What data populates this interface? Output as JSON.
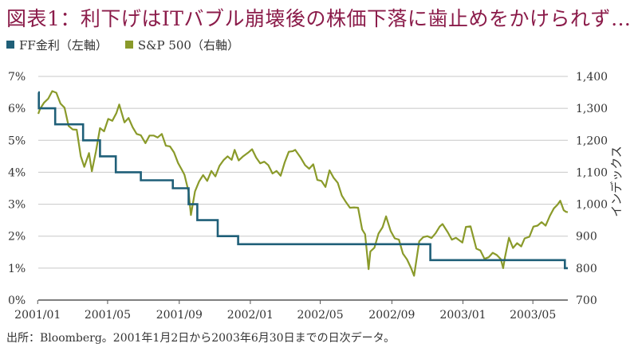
{
  "title": "図表1：利下げはITバブル崩壊後の株価下落に歯止めをかけられず…",
  "legend": {
    "ff": {
      "label": "FF金利（左軸）",
      "color": "#1f5f78"
    },
    "sp": {
      "label": "S&P 500（右軸）",
      "color": "#8a9a2a"
    }
  },
  "source": "出所：Bloomberg。2001年1月2日から2003年6月30日までの日次データ。",
  "chart_data": {
    "type": "line",
    "x_ticks": [
      "2001/01",
      "2001/05",
      "2001/09",
      "2002/01",
      "2002/05",
      "2002/09",
      "2003/01",
      "2003/05"
    ],
    "left_axis": {
      "ticks": [
        "0%",
        "1%",
        "2%",
        "3%",
        "4%",
        "5%",
        "6%",
        "7%"
      ],
      "range": [
        0,
        7
      ]
    },
    "right_axis": {
      "label": "インデックス",
      "ticks": [
        "700",
        "800",
        "900",
        "1,000",
        "1,100",
        "1,200",
        "1,300",
        "1,400"
      ],
      "range": [
        700,
        1400
      ]
    },
    "grid": "horizontal",
    "series": [
      {
        "name": "FF金利（左軸）",
        "axis": "left",
        "color": "#1f5f78",
        "step": true,
        "points": [
          [
            "2001-01-02",
            6.5
          ],
          [
            "2001-01-03",
            6.0
          ],
          [
            "2001-01-31",
            5.5
          ],
          [
            "2001-03-20",
            5.0
          ],
          [
            "2001-04-18",
            4.5
          ],
          [
            "2001-05-15",
            4.0
          ],
          [
            "2001-06-27",
            3.75
          ],
          [
            "2001-08-21",
            3.5
          ],
          [
            "2001-09-17",
            3.0
          ],
          [
            "2001-10-02",
            2.5
          ],
          [
            "2001-11-06",
            2.0
          ],
          [
            "2001-12-11",
            1.75
          ],
          [
            "2002-11-06",
            1.25
          ],
          [
            "2003-06-25",
            1.0
          ],
          [
            "2003-06-30",
            1.0
          ]
        ]
      },
      {
        "name": "S&P 500（右軸）",
        "axis": "right",
        "color": "#8a9a2a",
        "points": [
          [
            "2001-01-02",
            1283
          ],
          [
            "2001-01-05",
            1298
          ],
          [
            "2001-01-12",
            1318
          ],
          [
            "2001-01-19",
            1330
          ],
          [
            "2001-01-26",
            1354
          ],
          [
            "2001-02-02",
            1349
          ],
          [
            "2001-02-09",
            1315
          ],
          [
            "2001-02-16",
            1302
          ],
          [
            "2001-02-23",
            1245
          ],
          [
            "2001-03-02",
            1234
          ],
          [
            "2001-03-09",
            1233
          ],
          [
            "2001-03-16",
            1150
          ],
          [
            "2001-03-22",
            1117
          ],
          [
            "2001-03-30",
            1160
          ],
          [
            "2001-04-04",
            1103
          ],
          [
            "2001-04-11",
            1165
          ],
          [
            "2001-04-18",
            1238
          ],
          [
            "2001-04-25",
            1228
          ],
          [
            "2001-05-02",
            1267
          ],
          [
            "2001-05-09",
            1261
          ],
          [
            "2001-05-16",
            1285
          ],
          [
            "2001-05-21",
            1312
          ],
          [
            "2001-05-30",
            1256
          ],
          [
            "2001-06-06",
            1270
          ],
          [
            "2001-06-13",
            1241
          ],
          [
            "2001-06-20",
            1220
          ],
          [
            "2001-06-27",
            1216
          ],
          [
            "2001-07-05",
            1191
          ],
          [
            "2001-07-12",
            1215
          ],
          [
            "2001-07-19",
            1215
          ],
          [
            "2001-07-26",
            1209
          ],
          [
            "2001-08-02",
            1220
          ],
          [
            "2001-08-09",
            1183
          ],
          [
            "2001-08-16",
            1181
          ],
          [
            "2001-08-23",
            1162
          ],
          [
            "2001-08-30",
            1129
          ],
          [
            "2001-09-06",
            1106
          ],
          [
            "2001-09-10",
            1092
          ],
          [
            "2001-09-17",
            1039
          ],
          [
            "2001-09-21",
            966
          ],
          [
            "2001-09-28",
            1040
          ],
          [
            "2001-10-05",
            1071
          ],
          [
            "2001-10-12",
            1091
          ],
          [
            "2001-10-19",
            1073
          ],
          [
            "2001-10-26",
            1104
          ],
          [
            "2001-11-02",
            1087
          ],
          [
            "2001-11-09",
            1120
          ],
          [
            "2001-11-16",
            1138
          ],
          [
            "2001-11-23",
            1150
          ],
          [
            "2001-11-30",
            1139
          ],
          [
            "2001-12-05",
            1170
          ],
          [
            "2001-12-12",
            1137
          ],
          [
            "2001-12-19",
            1149
          ],
          [
            "2001-12-28",
            1161
          ],
          [
            "2002-01-04",
            1172
          ],
          [
            "2002-01-11",
            1146
          ],
          [
            "2002-01-18",
            1128
          ],
          [
            "2002-01-25",
            1133
          ],
          [
            "2002-02-01",
            1122
          ],
          [
            "2002-02-08",
            1096
          ],
          [
            "2002-02-15",
            1104
          ],
          [
            "2002-02-22",
            1089
          ],
          [
            "2002-03-01",
            1131
          ],
          [
            "2002-03-08",
            1164
          ],
          [
            "2002-03-15",
            1166
          ],
          [
            "2002-03-19",
            1170
          ],
          [
            "2002-03-28",
            1147
          ],
          [
            "2002-04-05",
            1122
          ],
          [
            "2002-04-12",
            1111
          ],
          [
            "2002-04-19",
            1125
          ],
          [
            "2002-04-26",
            1076
          ],
          [
            "2002-05-03",
            1073
          ],
          [
            "2002-05-10",
            1054
          ],
          [
            "2002-05-17",
            1106
          ],
          [
            "2002-05-24",
            1083
          ],
          [
            "2002-05-31",
            1067
          ],
          [
            "2002-06-07",
            1027
          ],
          [
            "2002-06-14",
            1007
          ],
          [
            "2002-06-21",
            989
          ],
          [
            "2002-06-28",
            990
          ],
          [
            "2002-07-05",
            989
          ],
          [
            "2002-07-12",
            921
          ],
          [
            "2002-07-17",
            906
          ],
          [
            "2002-07-23",
            797
          ],
          [
            "2002-07-26",
            852
          ],
          [
            "2002-08-02",
            864
          ],
          [
            "2002-08-09",
            908
          ],
          [
            "2002-08-16",
            928
          ],
          [
            "2002-08-22",
            962
          ],
          [
            "2002-08-30",
            916
          ],
          [
            "2002-09-06",
            893
          ],
          [
            "2002-09-13",
            889
          ],
          [
            "2002-09-20",
            845
          ],
          [
            "2002-09-27",
            827
          ],
          [
            "2002-10-04",
            800
          ],
          [
            "2002-10-09",
            776
          ],
          [
            "2002-10-18",
            884
          ],
          [
            "2002-10-25",
            897
          ],
          [
            "2002-11-01",
            900
          ],
          [
            "2002-11-08",
            894
          ],
          [
            "2002-11-15",
            909
          ],
          [
            "2002-11-22",
            930
          ],
          [
            "2002-11-27",
            938
          ],
          [
            "2002-12-06",
            912
          ],
          [
            "2002-12-13",
            889
          ],
          [
            "2002-12-20",
            895
          ],
          [
            "2002-12-31",
            880
          ],
          [
            "2003-01-06",
            929
          ],
          [
            "2003-01-14",
            931
          ],
          [
            "2003-01-24",
            861
          ],
          [
            "2003-01-31",
            855
          ],
          [
            "2003-02-07",
            829
          ],
          [
            "2003-02-14",
            834
          ],
          [
            "2003-02-21",
            848
          ],
          [
            "2003-02-28",
            841
          ],
          [
            "2003-03-07",
            828
          ],
          [
            "2003-03-11",
            800
          ],
          [
            "2003-03-14",
            833
          ],
          [
            "2003-03-21",
            895
          ],
          [
            "2003-03-28",
            863
          ],
          [
            "2003-04-04",
            878
          ],
          [
            "2003-04-11",
            868
          ],
          [
            "2003-04-17",
            893
          ],
          [
            "2003-04-25",
            898
          ],
          [
            "2003-05-02",
            930
          ],
          [
            "2003-05-09",
            933
          ],
          [
            "2003-05-16",
            944
          ],
          [
            "2003-05-23",
            933
          ],
          [
            "2003-05-30",
            963
          ],
          [
            "2003-06-06",
            987
          ],
          [
            "2003-06-12",
            998
          ],
          [
            "2003-06-17",
            1011
          ],
          [
            "2003-06-23",
            981
          ],
          [
            "2003-06-27",
            976
          ],
          [
            "2003-06-30",
            975
          ]
        ]
      }
    ]
  }
}
